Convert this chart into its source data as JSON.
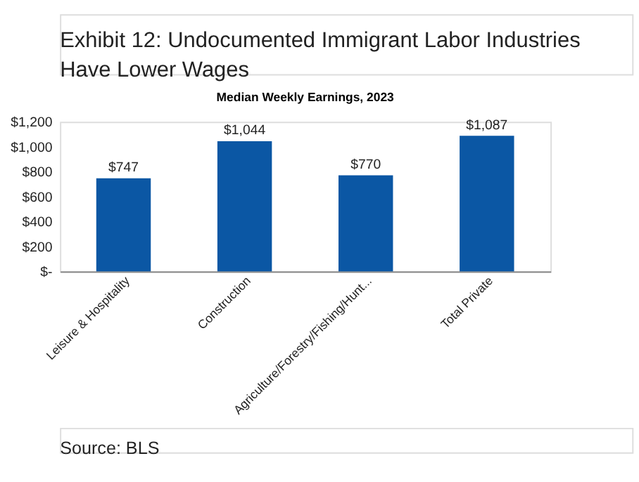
{
  "chart_data": {
    "type": "bar",
    "title": "Exhibit 12: Undocumented Immigrant Labor Industries Have Lower Wages",
    "subtitle": "Median Weekly Earnings, 2023",
    "categories": [
      "Leisure & Hospitality",
      "Construction",
      "Agriculture/Forestry/Fishing/Hunt...",
      "Total Private"
    ],
    "values": [
      747,
      1044,
      770,
      1087
    ],
    "value_labels": [
      "$747",
      "$1,044",
      "$770",
      "$1,087"
    ],
    "color": "#0b57a4",
    "ylim": [
      0,
      1200
    ],
    "yticks": [
      {
        "value": 0,
        "label": "$-"
      },
      {
        "value": 200,
        "label": "$200"
      },
      {
        "value": 400,
        "label": "$400"
      },
      {
        "value": 600,
        "label": "$600"
      },
      {
        "value": 800,
        "label": "$800"
      },
      {
        "value": 1000,
        "label": "$1,000"
      },
      {
        "value": 1200,
        "label": "$1,200"
      }
    ],
    "grid": false,
    "annotations": [
      "Source: BLS"
    ]
  }
}
